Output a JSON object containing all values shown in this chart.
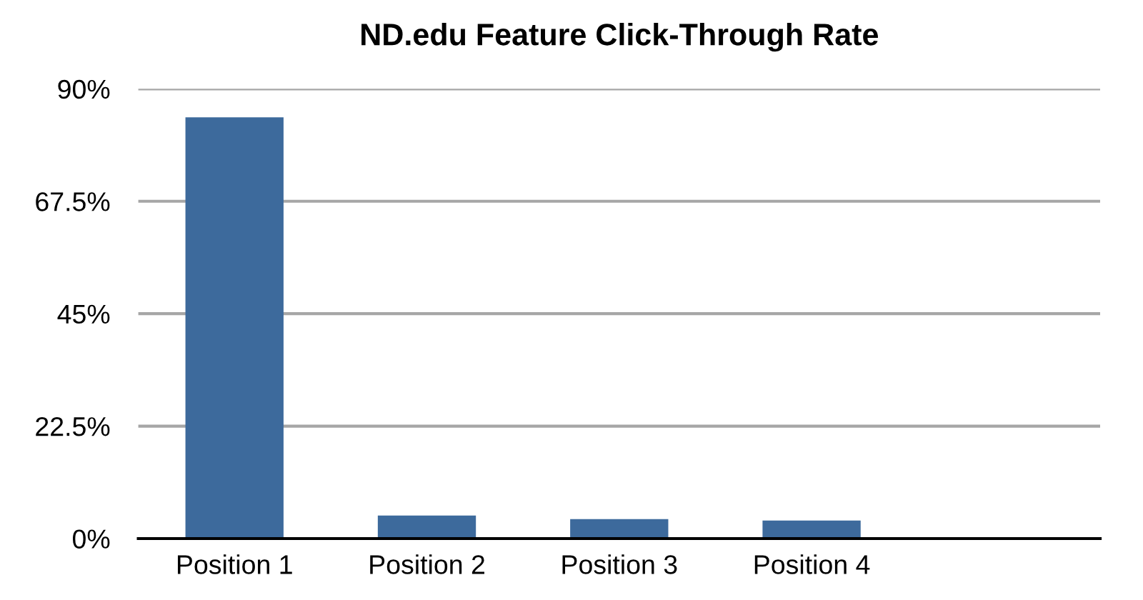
{
  "chart_data": {
    "type": "bar",
    "title": "ND.edu Feature Click-Through Rate",
    "categories": [
      "Position 1",
      "Position 2",
      "Position 3",
      "Position 4",
      null
    ],
    "values": [
      84.3,
      4.6,
      3.9,
      3.6,
      null
    ],
    "color": "#3d6a9c",
    "ylim": [
      0,
      90
    ],
    "yticks": [
      {
        "value": 0,
        "label": "0%"
      },
      {
        "value": 22.5,
        "label": "22.5%"
      },
      {
        "value": 45,
        "label": "45%"
      },
      {
        "value": 67.5,
        "label": "67.5%"
      },
      {
        "value": 90,
        "label": "90%"
      }
    ],
    "grid": "y"
  }
}
